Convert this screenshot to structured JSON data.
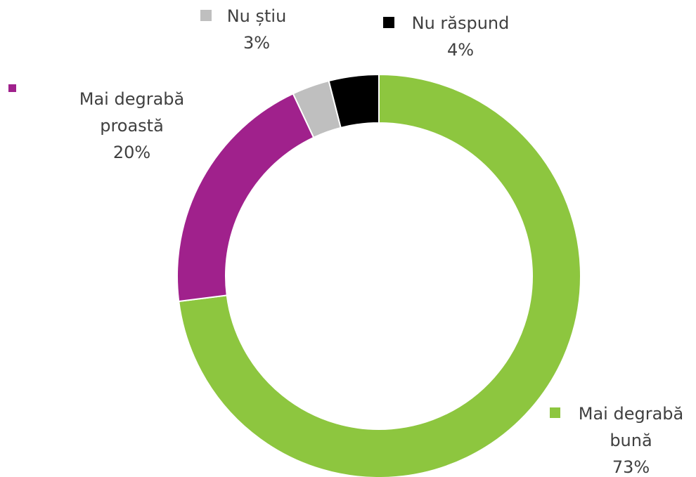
{
  "chart_data": {
    "type": "donut",
    "categories": [
      "Mai degrabă bună",
      "Mai degrabă proastă",
      "Nu știu",
      "Nu răspund"
    ],
    "values": [
      73,
      20,
      3,
      4
    ],
    "value_labels": [
      "73%",
      "20%",
      "3%",
      "4%"
    ],
    "colors": [
      "#8dc63f",
      "#a0218c",
      "#bfbfbf",
      "#000000"
    ]
  }
}
